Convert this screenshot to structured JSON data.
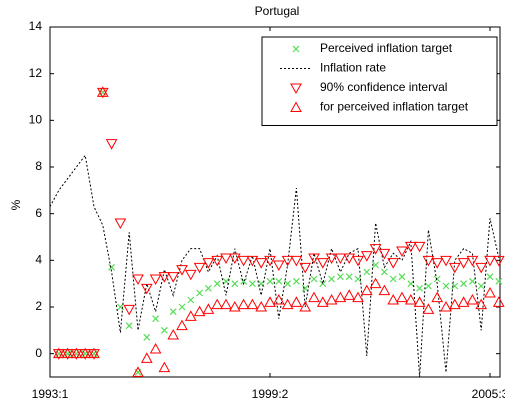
{
  "chart_data": {
    "type": "line",
    "title": "Portugal",
    "y_label": "%",
    "categories": [
      "1993:1",
      null,
      null,
      null,
      null,
      null,
      null,
      null,
      null,
      null,
      null,
      null,
      null,
      null,
      null,
      null,
      null,
      null,
      null,
      null,
      null,
      null,
      null,
      null,
      null,
      "1999:2",
      null,
      null,
      null,
      null,
      null,
      null,
      null,
      null,
      null,
      null,
      null,
      null,
      null,
      null,
      null,
      null,
      null,
      null,
      null,
      null,
      null,
      null,
      null,
      null,
      "2005:3",
      null
    ],
    "ylim": [
      -1,
      14
    ],
    "yticks": [
      0,
      2,
      4,
      6,
      8,
      10,
      12,
      14
    ],
    "grid": false,
    "legend_position": "upper right",
    "series": [
      {
        "name": "Perceived inflation target",
        "color": "#55dd55",
        "marker": "x",
        "values": [
          null,
          0,
          0,
          0,
          0,
          0,
          11.2,
          3.7,
          2.0,
          1.2,
          -0.8,
          0.7,
          1.5,
          1.0,
          1.8,
          2.0,
          2.3,
          2.6,
          2.8,
          3.0,
          3.1,
          3.0,
          3.1,
          3.0,
          3.0,
          3.1,
          3.1,
          3.0,
          3.1,
          2.8,
          3.2,
          3.0,
          3.2,
          3.3,
          3.3,
          3.2,
          3.5,
          3.8,
          3.5,
          3.2,
          3.3,
          3.0,
          2.8,
          2.9,
          3.2,
          2.9,
          2.9,
          3.0,
          3.1,
          2.9,
          3.3,
          3.1
        ]
      },
      {
        "name": "Inflation rate",
        "color": "#000000",
        "marker": "dashed",
        "values": [
          6.3,
          7.0,
          7.5,
          8.0,
          8.5,
          6.3,
          5.5,
          3.5,
          0.9,
          5.2,
          1.0,
          3.0,
          1.8,
          3.6,
          2.5,
          4.0,
          4.5,
          4.5,
          3.5,
          4.2,
          2.5,
          4.5,
          3.0,
          4.2,
          2.5,
          4.5,
          1.5,
          3.8,
          7.1,
          2.0,
          4.3,
          3.0,
          4.5,
          3.5,
          4.3,
          4.5,
          -0.1,
          5.6,
          3.7,
          4.3,
          4.0,
          4.8,
          -1.0,
          5.3,
          3.0,
          -0.8,
          4.0,
          4.5,
          4.3,
          1.0,
          5.8,
          4.1
        ]
      },
      {
        "name": "90% confidence interval",
        "color": "#ff0000",
        "marker": "triangle-down",
        "values": [
          null,
          0,
          0,
          0,
          0,
          0,
          11.2,
          9.0,
          5.6,
          1.9,
          3.2,
          2.8,
          3.2,
          3.3,
          3.3,
          3.6,
          3.4,
          3.7,
          3.9,
          4.0,
          4.1,
          4.1,
          4.0,
          4.0,
          3.9,
          4.0,
          3.8,
          4.0,
          4.0,
          3.7,
          4.1,
          3.9,
          4.1,
          4.1,
          4.1,
          4.0,
          4.2,
          4.5,
          4.3,
          3.9,
          4.4,
          4.6,
          4.6,
          4.0,
          3.9,
          4.0,
          3.7,
          3.9,
          4.0,
          3.7,
          4.0,
          4.0
        ]
      },
      {
        "name": "for perceived inflation target",
        "color": "#ff0000",
        "marker": "triangle-up",
        "values": [
          null,
          0,
          0,
          0,
          0,
          0,
          11.2,
          null,
          null,
          null,
          -0.8,
          -0.2,
          0.2,
          -0.6,
          0.8,
          1.2,
          1.6,
          1.8,
          1.9,
          2.1,
          2.1,
          2.0,
          2.1,
          2.1,
          2.0,
          2.2,
          2.3,
          2.1,
          2.2,
          2.0,
          2.4,
          2.2,
          2.3,
          2.4,
          2.5,
          2.4,
          2.7,
          3.0,
          2.7,
          2.3,
          2.4,
          2.3,
          2.2,
          1.9,
          2.4,
          2.0,
          2.1,
          2.2,
          2.3,
          2.1,
          2.6,
          2.2
        ]
      }
    ]
  }
}
